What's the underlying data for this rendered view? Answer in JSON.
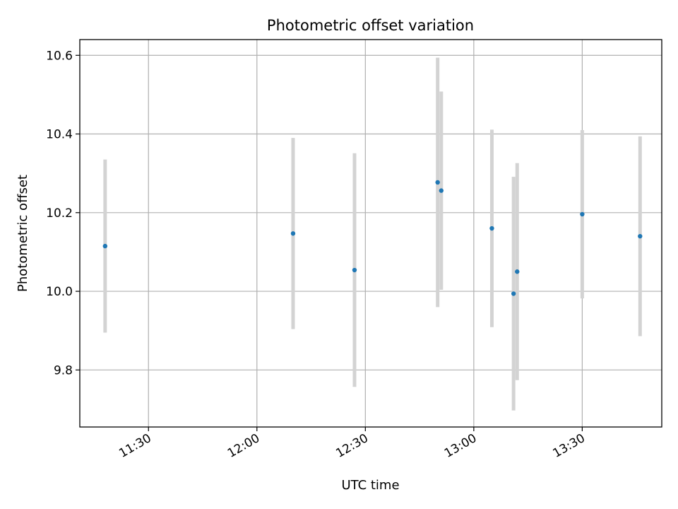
{
  "chart_data": {
    "type": "scatter",
    "title": "Photometric offset variation",
    "xlabel": "UTC time",
    "ylabel": "Photometric offset",
    "x_type": "time",
    "xlim": [
      "11:11",
      "13:52"
    ],
    "ylim": [
      9.655,
      10.64
    ],
    "xticks": [
      "11:30",
      "12:00",
      "12:30",
      "13:00",
      "13:30"
    ],
    "yticks": [
      9.8,
      10.0,
      10.2,
      10.4,
      10.6
    ],
    "grid": true,
    "legend": "none",
    "colors": {
      "point": "#1f77b4",
      "errorbar": "#d3d3d3"
    },
    "series": [
      {
        "points": [
          {
            "x": "11:18",
            "y": 10.115,
            "err": 0.22
          },
          {
            "x": "12:10",
            "y": 10.147,
            "err": 0.243
          },
          {
            "x": "12:27",
            "y": 10.054,
            "err": 0.297
          },
          {
            "x": "12:50",
            "y": 10.277,
            "err": 0.317
          },
          {
            "x": "12:51",
            "y": 10.256,
            "err": 0.252
          },
          {
            "x": "13:05",
            "y": 10.16,
            "err": 0.251
          },
          {
            "x": "13:11",
            "y": 9.994,
            "err": 0.297
          },
          {
            "x": "13:12",
            "y": 10.05,
            "err": 0.276
          },
          {
            "x": "13:30",
            "y": 10.196,
            "err": 0.214
          },
          {
            "x": "13:46",
            "y": 10.14,
            "err": 0.254
          }
        ]
      }
    ]
  }
}
